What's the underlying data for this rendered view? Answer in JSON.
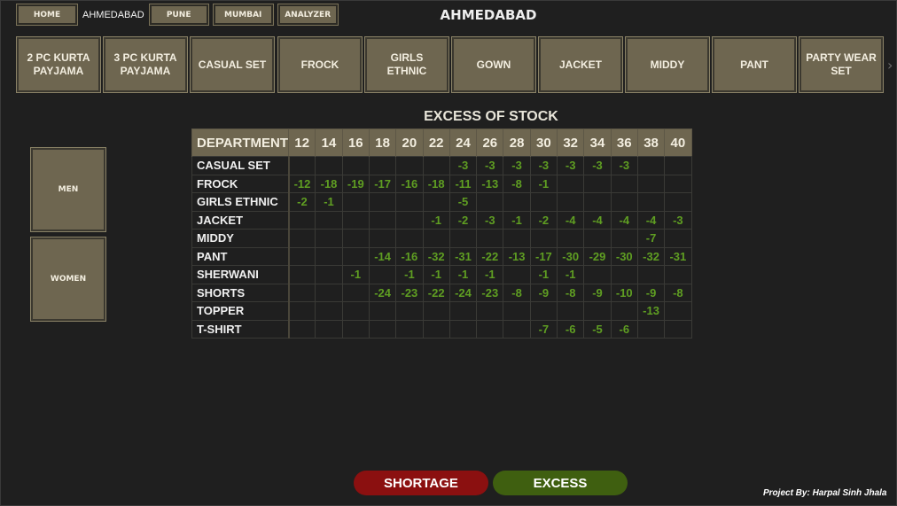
{
  "nav": {
    "home": "HOME",
    "current_city": "AHMEDABAD",
    "pune": "PUNE",
    "mumbai": "MUMBAI",
    "analyzer": "ANALYZER"
  },
  "page_title": "AHMEDABAD",
  "categories": [
    "2 PC KURTA PAYJAMA",
    "3 PC KURTA PAYJAMA",
    "CASUAL SET",
    "FROCK",
    "GIRLS ETHNIC",
    "GOWN",
    "JACKET",
    "MIDDY",
    "PANT",
    "PARTY WEAR SET"
  ],
  "gender": {
    "men": "MEN",
    "women": "WOMEN"
  },
  "table": {
    "title": "EXCESS OF STOCK",
    "dept_header": "DEPARTMENT",
    "sizes": [
      "12",
      "14",
      "16",
      "18",
      "20",
      "22",
      "24",
      "26",
      "28",
      "30",
      "32",
      "34",
      "36",
      "38",
      "40"
    ],
    "rows": [
      {
        "dept": "CASUAL SET",
        "values": [
          "",
          "",
          "",
          "",
          "",
          "",
          "-3",
          "-3",
          "-3",
          "-3",
          "-3",
          "-3",
          "-3",
          "",
          ""
        ]
      },
      {
        "dept": "FROCK",
        "values": [
          "-12",
          "-18",
          "-19",
          "-17",
          "-16",
          "-18",
          "-11",
          "-13",
          "-8",
          "-1",
          "",
          "",
          "",
          "",
          ""
        ]
      },
      {
        "dept": "GIRLS ETHNIC",
        "values": [
          "-2",
          "-1",
          "",
          "",
          "",
          "",
          "-5",
          "",
          "",
          "",
          "",
          "",
          "",
          "",
          ""
        ]
      },
      {
        "dept": "JACKET",
        "values": [
          "",
          "",
          "",
          "",
          "",
          "-1",
          "-2",
          "-3",
          "-1",
          "-2",
          "-4",
          "-4",
          "-4",
          "-4",
          "-3"
        ]
      },
      {
        "dept": "MIDDY",
        "values": [
          "",
          "",
          "",
          "",
          "",
          "",
          "",
          "",
          "",
          "",
          "",
          "",
          "",
          "-7",
          ""
        ]
      },
      {
        "dept": "PANT",
        "values": [
          "",
          "",
          "",
          "-14",
          "-16",
          "-32",
          "-31",
          "-22",
          "-13",
          "-17",
          "-30",
          "-29",
          "-30",
          "-32",
          "-31"
        ]
      },
      {
        "dept": "SHERWANI",
        "values": [
          "",
          "",
          "-1",
          "",
          "-1",
          "-1",
          "-1",
          "-1",
          "",
          "-1",
          "-1",
          "",
          "",
          "",
          ""
        ]
      },
      {
        "dept": "SHORTS",
        "values": [
          "",
          "",
          "",
          "-24",
          "-23",
          "-22",
          "-24",
          "-23",
          "-8",
          "-9",
          "-8",
          "-9",
          "-10",
          "-9",
          "-8"
        ]
      },
      {
        "dept": "TOPPER",
        "values": [
          "",
          "",
          "",
          "",
          "",
          "",
          "",
          "",
          "",
          "",
          "",
          "",
          "",
          "-13",
          ""
        ]
      },
      {
        "dept": "T-SHIRT",
        "values": [
          "",
          "",
          "",
          "",
          "",
          "",
          "",
          "",
          "",
          "-7",
          "-6",
          "-5",
          "-6",
          "",
          ""
        ]
      }
    ]
  },
  "toggles": {
    "shortage": "SHORTAGE",
    "excess": "EXCESS"
  },
  "footer": "Project By: Harpal Sinh Jhala",
  "colors": {
    "background": "#1f1f1f",
    "button": "#6e6650",
    "value_green": "#5f9e22",
    "shortage_red": "#8b1010",
    "excess_green": "#3f5f10"
  },
  "icons": {
    "category_scroll": "chevron-right-icon"
  }
}
